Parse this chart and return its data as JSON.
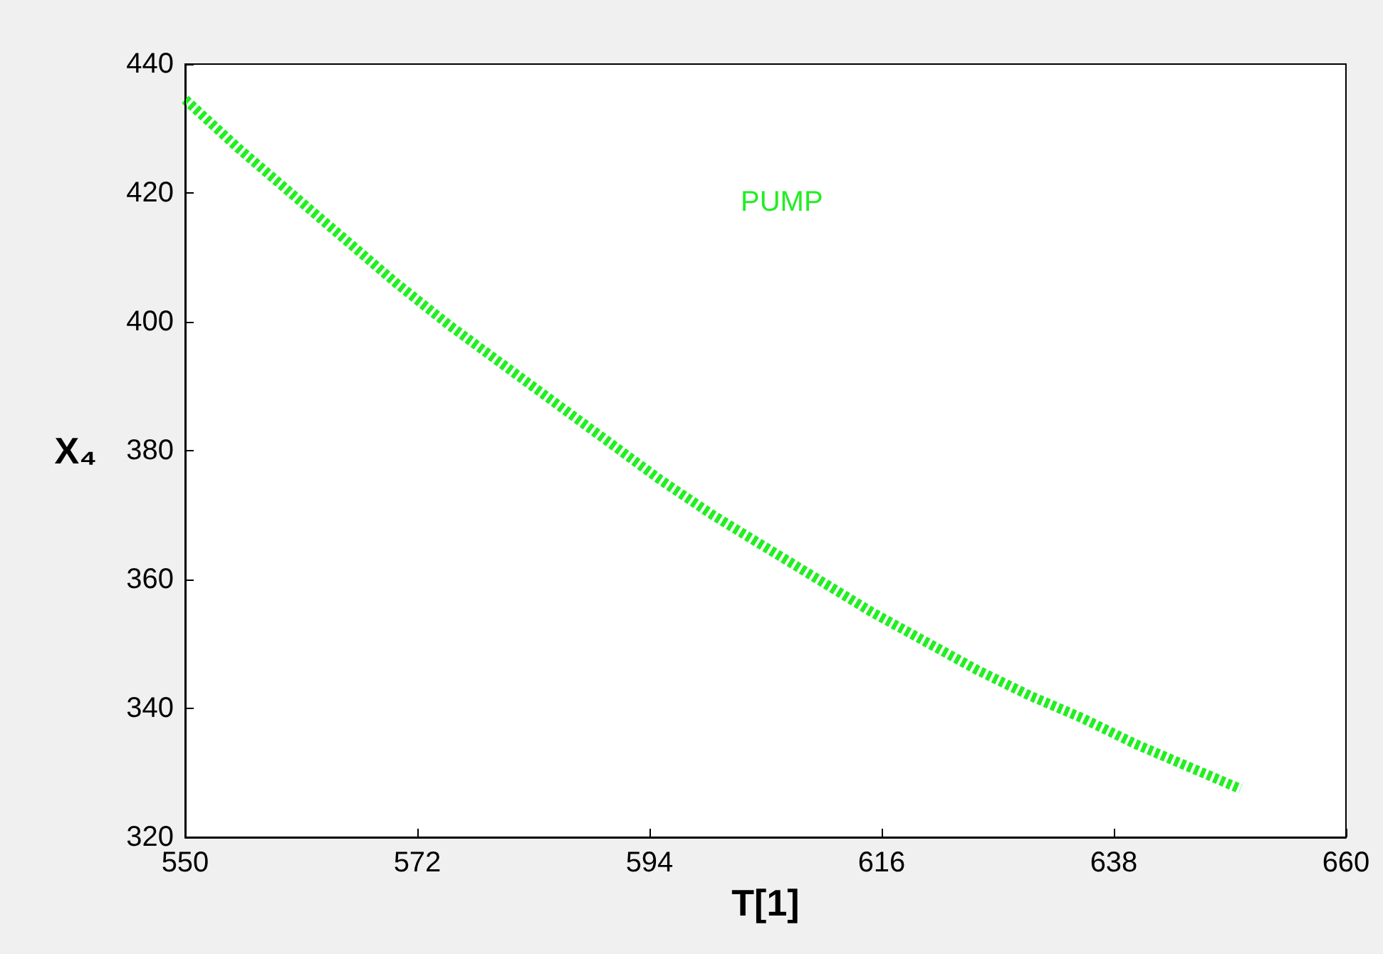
{
  "chart_data": {
    "type": "line",
    "xlabel": "T[1]",
    "ylabel": "X₄",
    "x": [
      550,
      555,
      560,
      565,
      570,
      575,
      580,
      585,
      590,
      595,
      600,
      605,
      610,
      615,
      620,
      625,
      630,
      635,
      640,
      645,
      650
    ],
    "series": [
      {
        "name": "PUMP",
        "color": "#22ee22",
        "values": [
          434.5,
          427,
          420,
          413,
          406,
          399.5,
          393.5,
          387.5,
          381.5,
          375.5,
          370,
          365,
          360,
          355,
          350.5,
          346,
          342,
          338.5,
          334.5,
          331,
          327.5
        ]
      }
    ],
    "xlim": [
      550,
      660
    ],
    "xticks": [
      550,
      572,
      594,
      616,
      638,
      660
    ],
    "ylim": [
      320,
      440
    ],
    "yticks": [
      320,
      340,
      360,
      380,
      400,
      420,
      440
    ],
    "grid": false,
    "marker": "none",
    "line_style": "dotted"
  }
}
